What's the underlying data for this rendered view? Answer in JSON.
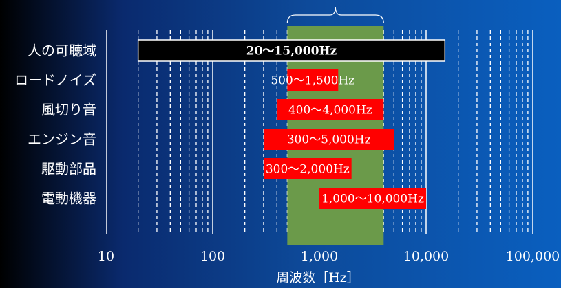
{
  "chart_data": {
    "type": "bar",
    "orientation": "horizontal",
    "scale": "log",
    "xlabel": "周波数［Hz］",
    "xlim": [
      10,
      100000
    ],
    "x_ticks": [
      {
        "value": 10,
        "label": "10"
      },
      {
        "value": 100,
        "label": "100"
      },
      {
        "value": 1000,
        "label": "1,000"
      },
      {
        "value": 10000,
        "label": "10,000"
      },
      {
        "value": 100000,
        "label": "100,000"
      }
    ],
    "grid": true,
    "highlight_band": {
      "from": 500,
      "to": 4000,
      "color": "#6b9a4a"
    },
    "bars": [
      {
        "category": "人の可聴域",
        "from": 20,
        "to": 15000,
        "label": "20〜15,000Hz",
        "color": "#000000",
        "text_color": "#ffffff"
      },
      {
        "category": "ロードノイズ",
        "from": 500,
        "to": 1500,
        "label": "500〜1,500Hz",
        "color": "#ff0000",
        "text_color": "#ffffff"
      },
      {
        "category": "風切り音",
        "from": 400,
        "to": 4000,
        "label": "400〜4,000Hz",
        "color": "#ff0000",
        "text_color": "#ffffff"
      },
      {
        "category": "エンジン音",
        "from": 300,
        "to": 5000,
        "label": "300〜5,000Hz",
        "color": "#ff0000",
        "text_color": "#ffffff"
      },
      {
        "category": "駆動部品",
        "from": 300,
        "to": 2000,
        "label": "300〜2,000Hz",
        "color": "#ff0000",
        "text_color": "#ffffff"
      },
      {
        "category": "電動機器",
        "from": 1000,
        "to": 10000,
        "label": "1,000〜10,000Hz",
        "color": "#ff0000",
        "text_color": "#ffffff"
      }
    ]
  }
}
